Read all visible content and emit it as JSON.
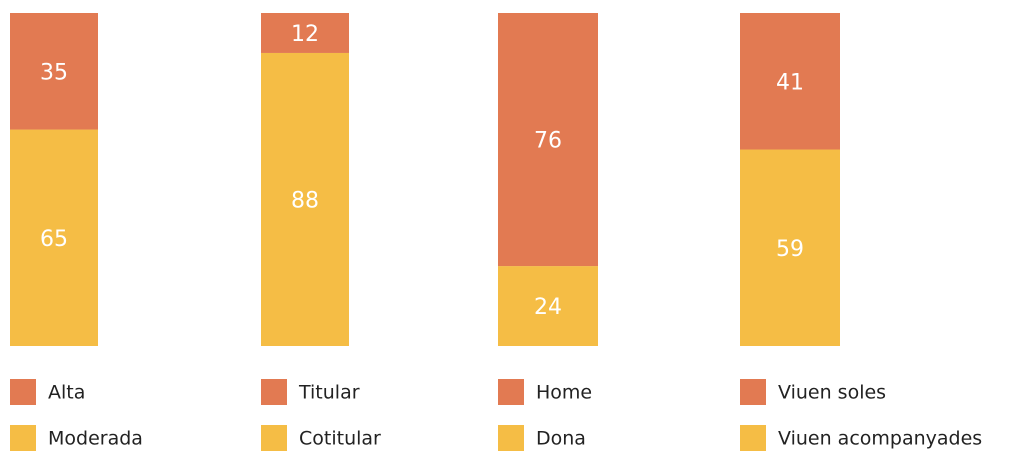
{
  "chart_data": [
    {
      "type": "bar",
      "stacked": true,
      "ylim": [
        0,
        100
      ],
      "series": [
        {
          "name": "Alta",
          "color": "#e27a52",
          "values": [
            35
          ]
        },
        {
          "name": "Moderada",
          "color": "#f5bd45",
          "values": [
            65
          ]
        }
      ]
    },
    {
      "type": "bar",
      "stacked": true,
      "ylim": [
        0,
        100
      ],
      "series": [
        {
          "name": "Titular",
          "color": "#e27a52",
          "values": [
            12
          ]
        },
        {
          "name": "Cotitular",
          "color": "#f5bd45",
          "values": [
            88
          ]
        }
      ]
    },
    {
      "type": "bar",
      "stacked": true,
      "ylim": [
        0,
        100
      ],
      "series": [
        {
          "name": "Home",
          "color": "#e27a52",
          "values": [
            76
          ]
        },
        {
          "name": "Dona",
          "color": "#f5bd45",
          "values": [
            24
          ]
        }
      ]
    },
    {
      "type": "bar",
      "stacked": true,
      "ylim": [
        0,
        100
      ],
      "series": [
        {
          "name": "Viuen soles",
          "color": "#e27a52",
          "values": [
            41
          ]
        },
        {
          "name": "Viuen acompanyades",
          "color": "#f5bd45",
          "values": [
            59
          ]
        }
      ]
    }
  ]
}
